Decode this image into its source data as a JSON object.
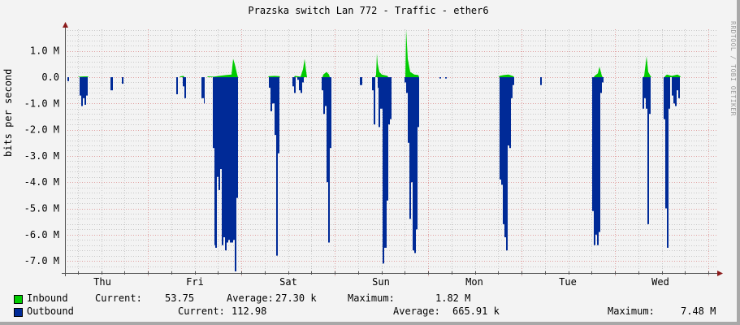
{
  "title": "Prazska switch Lan 772 - Traffic - ether6",
  "watermark": "RRDTOOL / TOBI OETIKER",
  "colors": {
    "inbound": "#00cc00",
    "outbound": "#002a97",
    "grid_minor": "#c8c8c8",
    "grid_major": "#e0a0a0",
    "axis": "#555555",
    "arrow": "#8b1a1a"
  },
  "chart_data": {
    "type": "area",
    "title": "Prazska switch Lan 772 - Traffic - ether6",
    "xlabel": "",
    "ylabel": "bits per second",
    "ylim": [
      -7400000,
      1900000
    ],
    "y_ticks": [
      "1.0 M",
      "0.0",
      "-1.0 M",
      "-2.0 M",
      "-3.0 M",
      "-4.0 M",
      "-5.0 M",
      "-6.0 M",
      "-7.0 M"
    ],
    "y_tick_values": [
      1000000,
      0,
      -1000000,
      -2000000,
      -3000000,
      -4000000,
      -5000000,
      -6000000,
      -7000000
    ],
    "x_ticks": [
      "Thu",
      "Fri",
      "Sat",
      "Sun",
      "Mon",
      "Tue",
      "Wed"
    ],
    "grid": true,
    "legend_position": "bottom",
    "series": [
      {
        "name": "Inbound",
        "color": "#00cc00",
        "direction": "positive",
        "points": [
          [
            97,
            0.02
          ],
          [
            104,
            0.03
          ],
          [
            108,
            0.03
          ],
          [
            222,
            0.03
          ],
          [
            226,
            0.05
          ],
          [
            256,
            0.03
          ],
          [
            263,
            0.02
          ],
          [
            270,
            0.05
          ],
          [
            278,
            0.08
          ],
          [
            285,
            0.1
          ],
          [
            287,
            0.7
          ],
          [
            289,
            0.5
          ],
          [
            292,
            0.1
          ],
          [
            331,
            0.04
          ],
          [
            338,
            0.05
          ],
          [
            344,
            0.04
          ],
          [
            363,
            0.05
          ],
          [
            370,
            0.02
          ],
          [
            373,
            0.3
          ],
          [
            375,
            0.7
          ],
          [
            377,
            0.2
          ],
          [
            398,
            0.1
          ],
          [
            402,
            0.2
          ],
          [
            405,
            0.1
          ],
          [
            463,
            0.1
          ],
          [
            464,
            0.9
          ],
          [
            465,
            0.5
          ],
          [
            467,
            0.2
          ],
          [
            470,
            0.1
          ],
          [
            477,
            0.05
          ],
          [
            500,
            1.82
          ],
          [
            502,
            0.7
          ],
          [
            505,
            0.2
          ],
          [
            510,
            0.1
          ],
          [
            515,
            0.08
          ],
          [
            615,
            0.05
          ],
          [
            620,
            0.08
          ],
          [
            626,
            0.1
          ],
          [
            632,
            0.04
          ],
          [
            732,
            0.05
          ],
          [
            736,
            0.15
          ],
          [
            738,
            0.4
          ],
          [
            741,
            0.05
          ],
          [
            793,
            0.05
          ],
          [
            796,
            0.8
          ],
          [
            798,
            0.2
          ],
          [
            801,
            0.04
          ],
          [
            819,
            0.05
          ],
          [
            821,
            0.1
          ],
          [
            827,
            0.05
          ],
          [
            834,
            0.1
          ],
          [
            837,
            0.05
          ]
        ]
      },
      {
        "name": "Outbound",
        "color": "#002a97",
        "direction": "negative",
        "spikes": [
          [
            83,
            85,
            -0.15
          ],
          [
            98,
            100,
            -0.7
          ],
          [
            100,
            102,
            -1.1
          ],
          [
            102,
            104,
            -0.8
          ],
          [
            104,
            106,
            -1.05
          ],
          [
            106,
            108,
            -0.7
          ],
          [
            136,
            139,
            -0.5
          ],
          [
            150,
            152,
            -0.25
          ],
          [
            217,
            219,
            -0.65
          ],
          [
            225,
            227,
            -0.35
          ],
          [
            227,
            229,
            -0.8
          ],
          [
            248,
            251,
            -0.8
          ],
          [
            251,
            252,
            -1.0
          ],
          [
            262,
            264,
            -2.7
          ],
          [
            264,
            265,
            -6.4
          ],
          [
            265,
            267,
            -6.5
          ],
          [
            267,
            269,
            -3.8
          ],
          [
            269,
            271,
            -4.3
          ],
          [
            271,
            273,
            -3.5
          ],
          [
            273,
            275,
            -6.4
          ],
          [
            275,
            277,
            -6.1
          ],
          [
            277,
            279,
            -6.6
          ],
          [
            279,
            281,
            -6.3
          ],
          [
            281,
            283,
            -6.2
          ],
          [
            283,
            285,
            -6.3
          ],
          [
            285,
            287,
            -6.3
          ],
          [
            287,
            289,
            -6.2
          ],
          [
            289,
            291,
            -7.4
          ],
          [
            291,
            293,
            -4.6
          ],
          [
            331,
            333,
            -0.4
          ],
          [
            333,
            335,
            -1.3
          ],
          [
            335,
            338,
            -1.0
          ],
          [
            338,
            340,
            -2.2
          ],
          [
            340,
            342,
            -6.8
          ],
          [
            342,
            344,
            -2.9
          ],
          [
            360,
            362,
            -0.35
          ],
          [
            362,
            364,
            -0.6
          ],
          [
            366,
            368,
            -0.1
          ],
          [
            368,
            370,
            -0.5
          ],
          [
            370,
            372,
            -0.6
          ],
          [
            372,
            374,
            -0.2
          ],
          [
            396,
            398,
            -0.5
          ],
          [
            398,
            400,
            -1.4
          ],
          [
            400,
            402,
            -1.1
          ],
          [
            402,
            404,
            -4.0
          ],
          [
            404,
            406,
            -6.3
          ],
          [
            406,
            408,
            -2.7
          ],
          [
            443,
            446,
            -0.3
          ],
          [
            458,
            460,
            -0.5
          ],
          [
            460,
            462,
            -1.8
          ],
          [
            465,
            466,
            -0.4
          ],
          [
            466,
            468,
            -1.9
          ],
          [
            468,
            471,
            -1.2
          ],
          [
            471,
            473,
            -7.1
          ],
          [
            473,
            476,
            -6.5
          ],
          [
            476,
            478,
            -4.7
          ],
          [
            478,
            480,
            -1.8
          ],
          [
            480,
            482,
            -1.6
          ],
          [
            498,
            500,
            -0.2
          ],
          [
            500,
            502,
            -0.6
          ],
          [
            502,
            504,
            -2.5
          ],
          [
            504,
            506,
            -5.4
          ],
          [
            506,
            508,
            -4.0
          ],
          [
            508,
            510,
            -6.6
          ],
          [
            510,
            512,
            -6.7
          ],
          [
            512,
            514,
            -5.8
          ],
          [
            514,
            516,
            -1.9
          ],
          [
            541,
            543,
            -0.05
          ],
          [
            548,
            550,
            -0.05
          ],
          [
            615,
            617,
            -3.9
          ],
          [
            617,
            619,
            -4.1
          ],
          [
            619,
            621,
            -5.6
          ],
          [
            621,
            623,
            -6.1
          ],
          [
            623,
            625,
            -6.6
          ],
          [
            625,
            627,
            -2.6
          ],
          [
            627,
            629,
            -2.7
          ],
          [
            629,
            631,
            -0.8
          ],
          [
            631,
            633,
            -0.3
          ],
          [
            665,
            667,
            -0.3
          ],
          [
            729,
            731,
            -5.1
          ],
          [
            731,
            733,
            -6.4
          ],
          [
            733,
            735,
            -6.0
          ],
          [
            735,
            737,
            -6.4
          ],
          [
            737,
            739,
            -5.9
          ],
          [
            739,
            741,
            -0.6
          ],
          [
            741,
            743,
            -0.2
          ],
          [
            791,
            793,
            -1.2
          ],
          [
            793,
            795,
            -0.8
          ],
          [
            795,
            797,
            -1.2
          ],
          [
            797,
            799,
            -5.6
          ],
          [
            799,
            801,
            -1.4
          ],
          [
            817,
            819,
            -1.6
          ],
          [
            819,
            821,
            -5.0
          ],
          [
            821,
            823,
            -6.5
          ],
          [
            823,
            825,
            -1.2
          ],
          [
            827,
            829,
            -0.7
          ],
          [
            829,
            831,
            -1.0
          ],
          [
            831,
            833,
            -1.1
          ],
          [
            833,
            835,
            -0.5
          ],
          [
            835,
            837,
            -0.8
          ]
        ]
      }
    ],
    "summary": {
      "Inbound": {
        "current": "53.75",
        "average": "27.30 k",
        "maximum": "1.82 M"
      },
      "Outbound": {
        "current": "112.98",
        "average": "665.91 k",
        "maximum": "7.48 M"
      }
    }
  },
  "legend": {
    "inbound": {
      "label": "Inbound",
      "current_label": "Current:",
      "current_value": "53.75",
      "average_label": "Average:",
      "average_value": "27.30 k",
      "maximum_label": "Maximum:",
      "maximum_value": "1.82 M"
    },
    "outbound": {
      "label": "Outbound",
      "current_label": "Current:",
      "current_value": "112.98",
      "average_label": "Average:",
      "average_value": "665.91 k",
      "maximum_label": "Maximum:",
      "maximum_value": "7.48 M"
    }
  }
}
